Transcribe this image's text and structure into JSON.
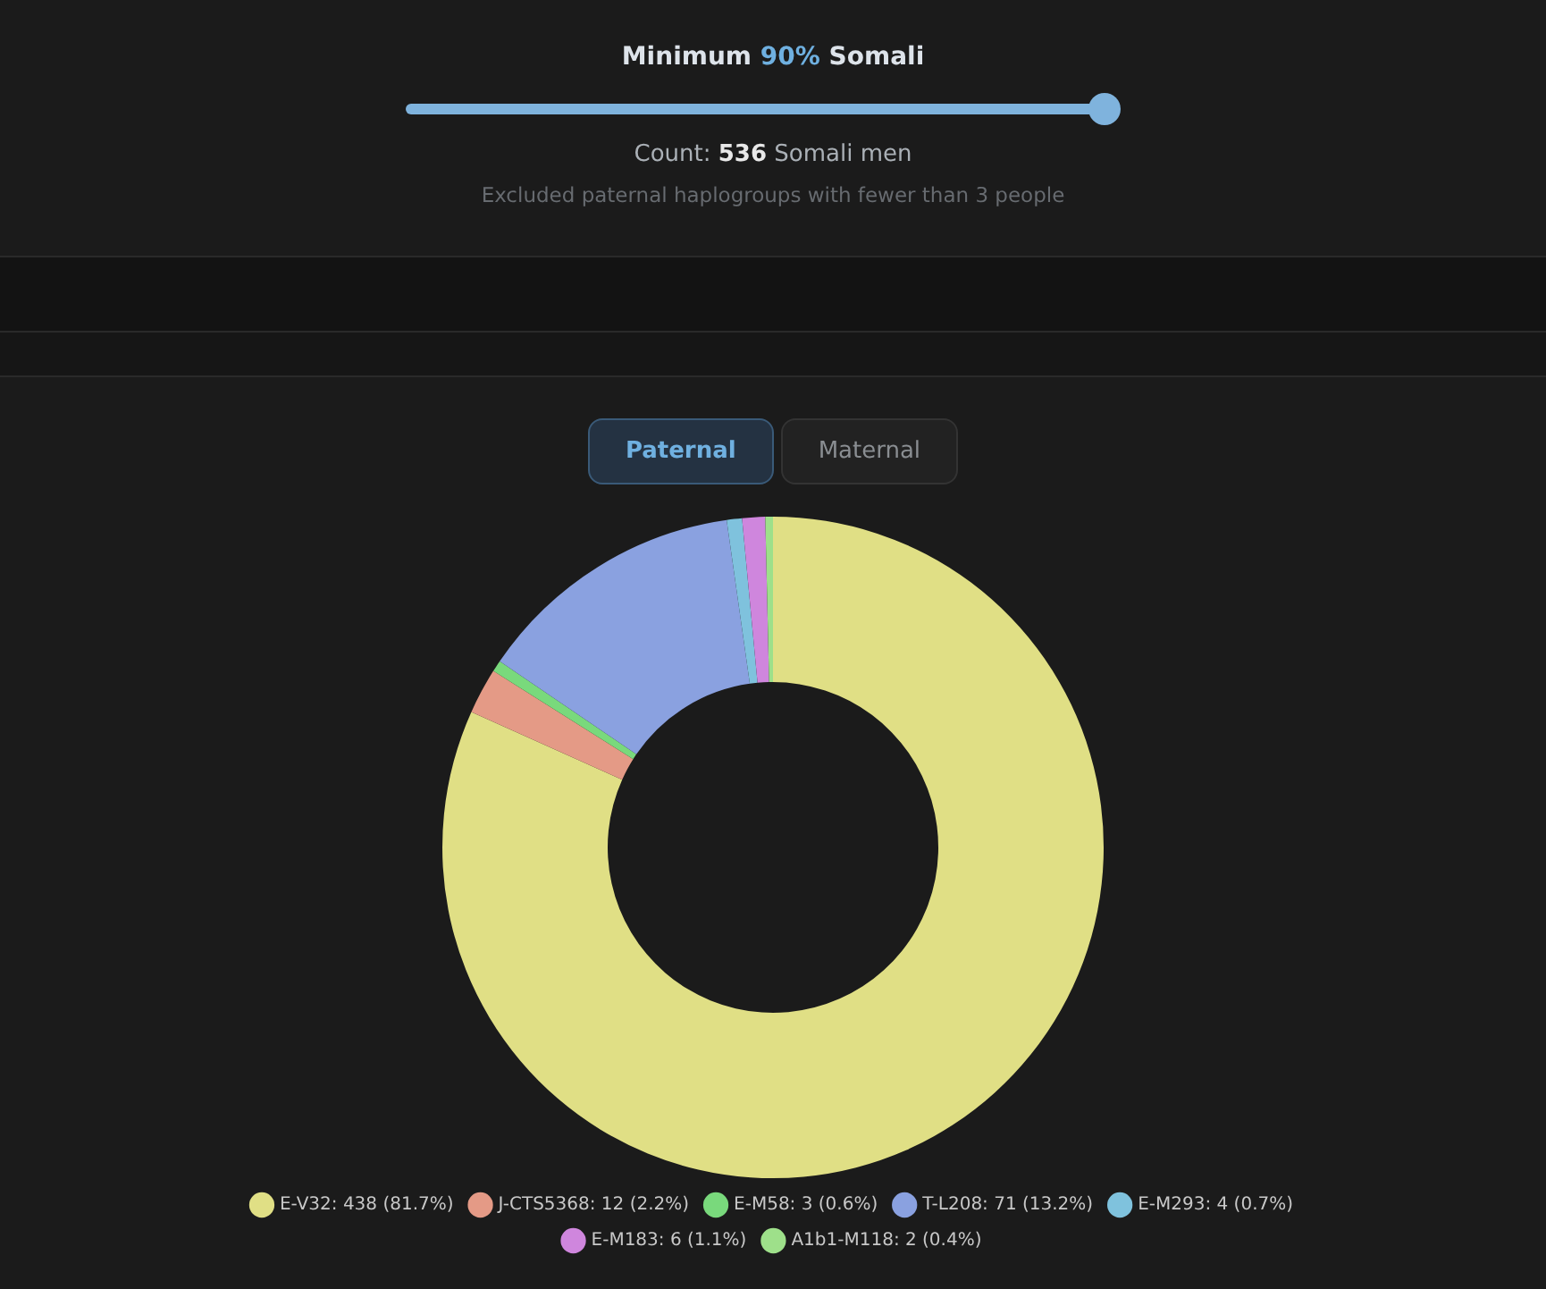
{
  "chart_data": {
    "type": "donut",
    "title": "Minimum 90% Somali",
    "subtitle": "Count: 536 Somali men",
    "annotations": [
      "Excluded paternal haplogroups with fewer than 3 people",
      "Paternal",
      "Maternal"
    ],
    "categories": [
      "E-V32",
      "J-CTS5368",
      "E-M58",
      "T-L208",
      "E-M293",
      "E-M183",
      "A1b1-M118"
    ],
    "values": [
      438,
      12,
      3,
      71,
      4,
      6,
      2
    ],
    "value_labels": [
      "438 (81.7%)",
      "12 (2.2%)",
      "3 (0.6%)",
      "71 (13.2%)",
      "4 (0.7%)",
      "6 (1.1%)",
      "2 (0.4%)"
    ],
    "colors": [
      "#e0df85",
      "#e49a86",
      "#79d97c",
      "#8aa1e0",
      "#7fc2dd",
      "#cf86dd",
      "#9ee08a"
    ],
    "legend": "bottom"
  }
}
